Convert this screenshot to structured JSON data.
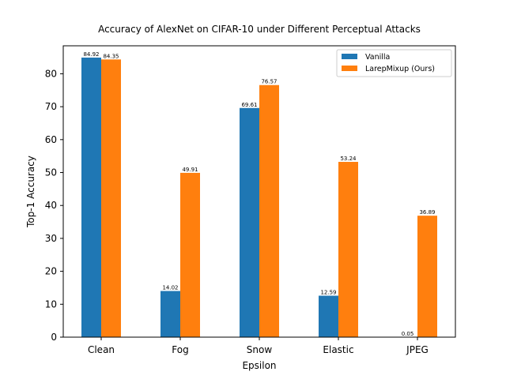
{
  "chart_data": {
    "type": "bar",
    "title": "Accuracy of AlexNet on CIFAR-10 under Different Perceptual Attacks",
    "xlabel": "Epsilon",
    "ylabel": "Top-1 Accuracy",
    "categories": [
      "Clean",
      "Fog",
      "Snow",
      "Elastic",
      "JPEG"
    ],
    "ylim": [
      0,
      88.5
    ],
    "yticks": [
      0,
      10,
      20,
      30,
      40,
      50,
      60,
      70,
      80
    ],
    "grid": false,
    "legend_position": "top-right",
    "series": [
      {
        "name": "Vanilla",
        "color": "#1f77b4",
        "values": [
          84.92,
          14.02,
          69.61,
          12.59,
          0.05
        ],
        "labels": [
          "84.92",
          "14.02",
          "69.61",
          "12.59",
          "0.05"
        ]
      },
      {
        "name": "LarepMixup (Ours)",
        "color": "#ff7f0e",
        "values": [
          84.35,
          49.91,
          76.57,
          53.24,
          36.89
        ],
        "labels": [
          "84.35",
          "49.91",
          "76.57",
          "53.24",
          "36.89"
        ]
      }
    ]
  }
}
